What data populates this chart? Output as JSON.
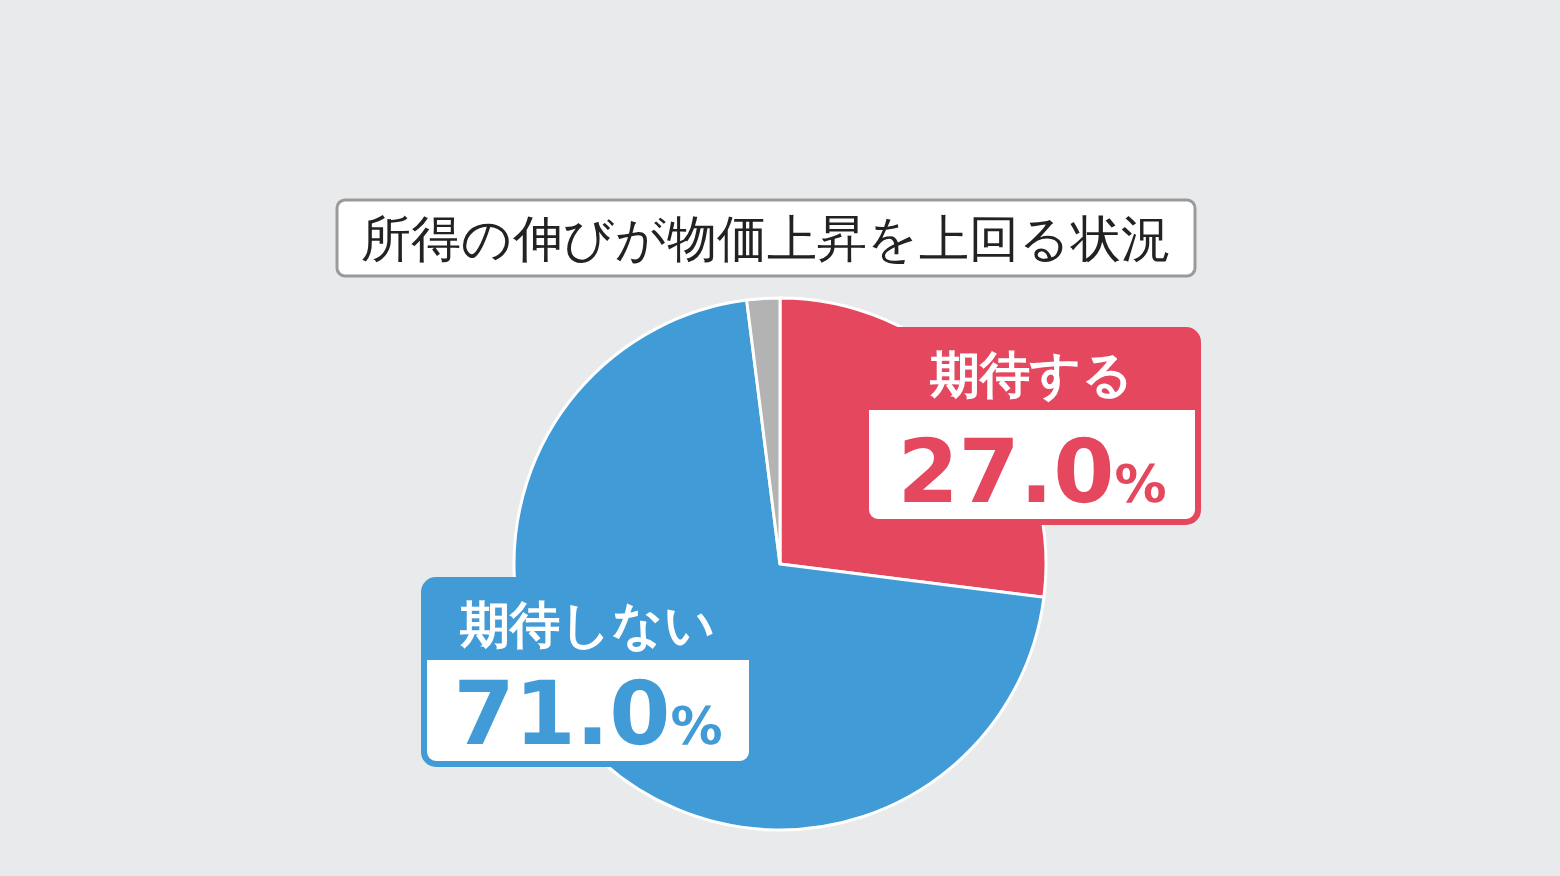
{
  "chart_data": {
    "type": "pie",
    "title": "所得の伸びが物価上昇を上回る状況",
    "categories": [
      "期待する",
      "期待しない",
      null
    ],
    "values": [
      27.0,
      71.0,
      2.0
    ],
    "colors": [
      "#e5475f",
      "#419bd6",
      "#b3b3b3"
    ],
    "value_labels": [
      "27.0%",
      "71.0%",
      null
    ]
  }
}
